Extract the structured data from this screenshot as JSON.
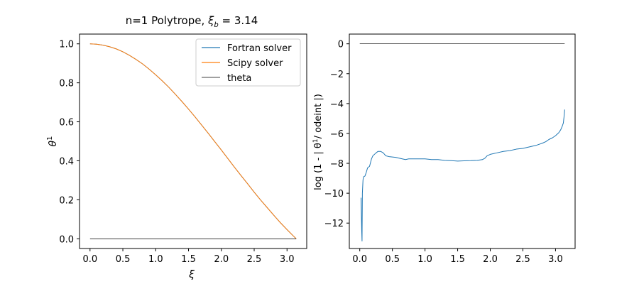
{
  "chart_data": [
    {
      "type": "line",
      "title": "n=1 Polytrope, ξ_b = 3.14",
      "title_parts": {
        "prefix": "n=1 Polytrope, ",
        "symbol": "ξ",
        "subscript": "b",
        "suffix": " =  3.14"
      },
      "xlabel": "ξ",
      "ylabel": "θ",
      "ylabel_superscript": "1",
      "xlim": [
        -0.16,
        3.3
      ],
      "ylim": [
        -0.05,
        1.05
      ],
      "xticks": [
        0.0,
        0.5,
        1.0,
        1.5,
        2.0,
        2.5,
        3.0
      ],
      "xtick_labels": [
        "0.0",
        "0.5",
        "1.0",
        "1.5",
        "2.0",
        "2.5",
        "3.0"
      ],
      "yticks": [
        0.0,
        0.2,
        0.4,
        0.6,
        0.8,
        1.0
      ],
      "ytick_labels": [
        "0.0",
        "0.2",
        "0.4",
        "0.6",
        "0.8",
        "1.0"
      ],
      "grid": false,
      "legend_position": "top-right",
      "series": [
        {
          "name": "Fortran solver",
          "color": "#1f77b4",
          "x": [
            0.0,
            0.1,
            0.2,
            0.3,
            0.4,
            0.5,
            0.6,
            0.7,
            0.8,
            0.9,
            1.0,
            1.1,
            1.2,
            1.3,
            1.4,
            1.5,
            1.6,
            1.7,
            1.8,
            1.9,
            2.0,
            2.1,
            2.2,
            2.3,
            2.4,
            2.5,
            2.6,
            2.7,
            2.8,
            2.9,
            3.0,
            3.1,
            3.14
          ],
          "y": [
            1.0,
            0.998,
            0.993,
            0.985,
            0.974,
            0.959,
            0.941,
            0.92,
            0.897,
            0.87,
            0.841,
            0.81,
            0.777,
            0.741,
            0.704,
            0.665,
            0.625,
            0.583,
            0.541,
            0.498,
            0.455,
            0.411,
            0.367,
            0.324,
            0.282,
            0.239,
            0.198,
            0.159,
            0.12,
            0.082,
            0.047,
            0.013,
            0.0
          ]
        },
        {
          "name": "Scipy solver",
          "color": "#ff7f0e",
          "x": [
            0.0,
            0.1,
            0.2,
            0.3,
            0.4,
            0.5,
            0.6,
            0.7,
            0.8,
            0.9,
            1.0,
            1.1,
            1.2,
            1.3,
            1.4,
            1.5,
            1.6,
            1.7,
            1.8,
            1.9,
            2.0,
            2.1,
            2.2,
            2.3,
            2.4,
            2.5,
            2.6,
            2.7,
            2.8,
            2.9,
            3.0,
            3.1,
            3.14
          ],
          "y": [
            1.0,
            0.998,
            0.993,
            0.985,
            0.974,
            0.959,
            0.941,
            0.92,
            0.897,
            0.87,
            0.841,
            0.81,
            0.777,
            0.741,
            0.704,
            0.665,
            0.625,
            0.583,
            0.541,
            0.498,
            0.455,
            0.411,
            0.367,
            0.324,
            0.282,
            0.239,
            0.198,
            0.159,
            0.12,
            0.082,
            0.047,
            0.013,
            0.0
          ]
        },
        {
          "name": "theta",
          "color": "#000000",
          "x": [
            0.0,
            3.14
          ],
          "y": [
            0.0,
            0.0
          ]
        }
      ]
    },
    {
      "type": "line",
      "title": "",
      "xlabel": "",
      "ylabel_prefix": "log (1 - | θ",
      "ylabel_superscript": "1",
      "ylabel_suffix": "/ odeint |)",
      "xlim": [
        -0.16,
        3.3
      ],
      "ylim": [
        -13.7,
        0.65
      ],
      "xticks": [
        0.0,
        0.5,
        1.0,
        1.5,
        2.0,
        2.5,
        3.0
      ],
      "xtick_labels": [
        "0.0",
        "0.5",
        "1.0",
        "1.5",
        "2.0",
        "2.5",
        "3.0"
      ],
      "yticks": [
        0,
        -2,
        -4,
        -6,
        -8,
        -10,
        -12
      ],
      "ytick_labels": [
        "0",
        "−2",
        "−4",
        "−6",
        "−8",
        "−10",
        "−12"
      ],
      "grid": false,
      "series": [
        {
          "color": "#1f77b4",
          "x": [
            0.02,
            0.03,
            0.035,
            0.04,
            0.05,
            0.06,
            0.08,
            0.1,
            0.12,
            0.15,
            0.18,
            0.2,
            0.25,
            0.28,
            0.32,
            0.36,
            0.4,
            0.45,
            0.55,
            0.65,
            0.7,
            0.75,
            0.85,
            1.0,
            1.1,
            1.2,
            1.3,
            1.4,
            1.5,
            1.6,
            1.7,
            1.8,
            1.88,
            1.92,
            1.95,
            2.0,
            2.1,
            2.2,
            2.3,
            2.4,
            2.5,
            2.6,
            2.7,
            2.8,
            2.85,
            2.9,
            2.95,
            3.0,
            3.05,
            3.08,
            3.1,
            3.12,
            3.13,
            3.14
          ],
          "y": [
            -10.3,
            -12.5,
            -13.2,
            -10.0,
            -9.1,
            -8.9,
            -8.85,
            -8.6,
            -8.3,
            -8.2,
            -7.7,
            -7.5,
            -7.3,
            -7.2,
            -7.2,
            -7.3,
            -7.5,
            -7.55,
            -7.6,
            -7.7,
            -7.75,
            -7.7,
            -7.7,
            -7.7,
            -7.75,
            -7.75,
            -7.8,
            -7.82,
            -7.85,
            -7.83,
            -7.82,
            -7.8,
            -7.75,
            -7.65,
            -7.5,
            -7.4,
            -7.3,
            -7.2,
            -7.15,
            -7.05,
            -7.0,
            -6.9,
            -6.8,
            -6.65,
            -6.55,
            -6.4,
            -6.3,
            -6.15,
            -5.95,
            -5.75,
            -5.55,
            -5.3,
            -4.9,
            -4.4
          ]
        },
        {
          "color": "#000000",
          "x": [
            0.0,
            3.14
          ],
          "y": [
            0.0,
            0.0
          ]
        }
      ]
    }
  ]
}
